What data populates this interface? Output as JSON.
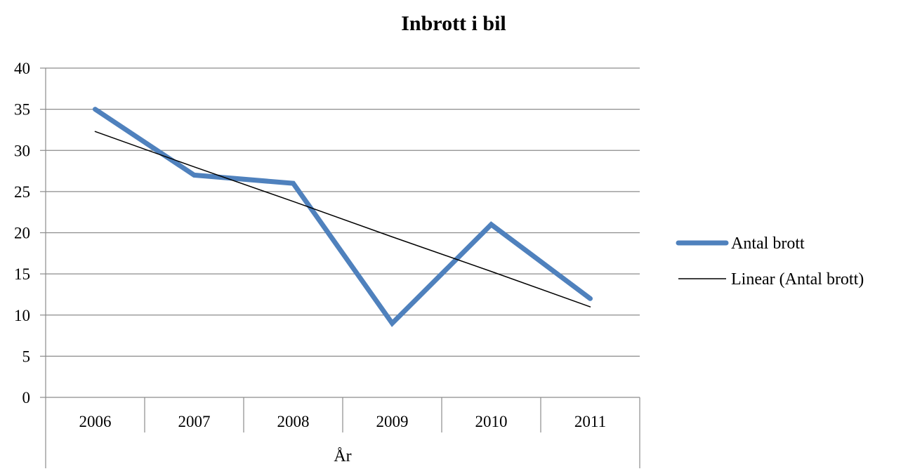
{
  "chart_data": {
    "type": "line",
    "title": "Inbrott i bil",
    "xlabel": "År",
    "ylabel": "",
    "categories": [
      "2006",
      "2007",
      "2008",
      "2009",
      "2010",
      "2011"
    ],
    "ylim": [
      0,
      40
    ],
    "yticks": [
      0,
      5,
      10,
      15,
      20,
      25,
      30,
      35,
      40
    ],
    "grid": true,
    "legend_position": "right",
    "series": [
      {
        "name": "Antal brott",
        "values": [
          35,
          27,
          26,
          9,
          21,
          12
        ],
        "color": "#4f81bd"
      },
      {
        "name": "Linear (Antal brott)",
        "values": [
          32.3,
          28.0,
          23.8,
          19.5,
          15.3,
          11.0
        ],
        "color": "#000000",
        "trendline": true
      }
    ]
  }
}
